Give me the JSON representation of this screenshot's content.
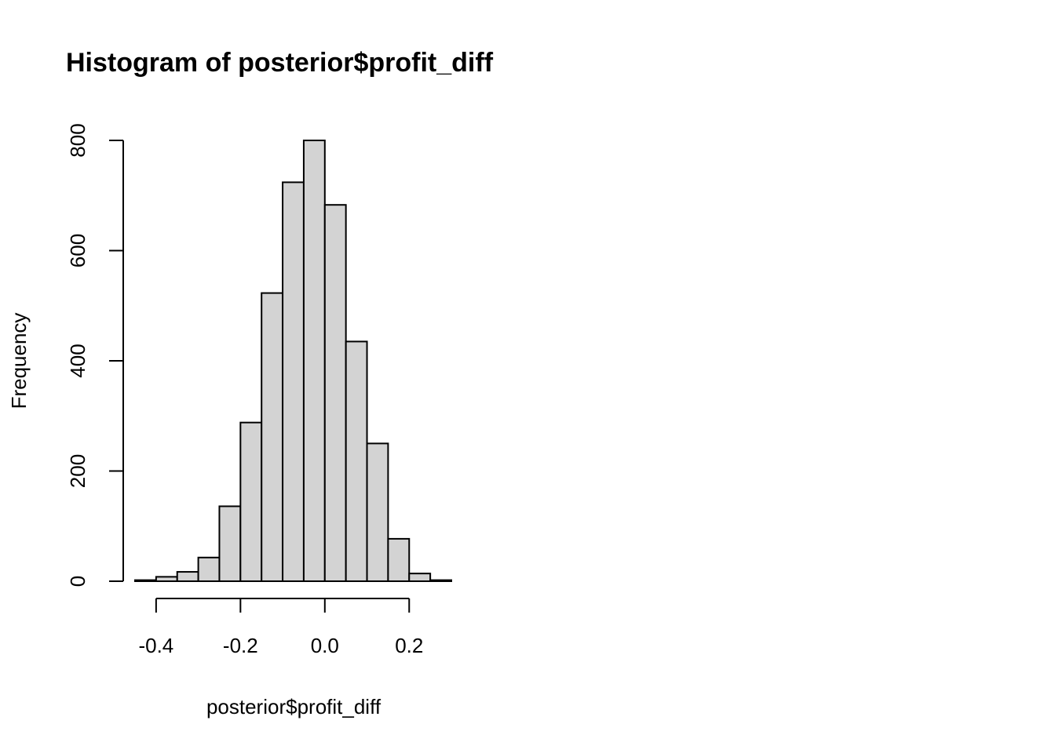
{
  "chart_data": {
    "type": "bar",
    "title": "Histogram of posterior$profit_diff",
    "xlabel": "posterior$profit_diff",
    "ylabel": "Frequency",
    "bin_edges": [
      -0.45,
      -0.4,
      -0.35,
      -0.3,
      -0.25,
      -0.2,
      -0.15,
      -0.1,
      -0.05,
      0.0,
      0.05,
      0.1,
      0.15,
      0.2,
      0.25,
      0.3
    ],
    "values": [
      2,
      8,
      17,
      43,
      136,
      288,
      523,
      724,
      800,
      683,
      435,
      250,
      77,
      14,
      2
    ],
    "xlim": [
      -0.45,
      0.3
    ],
    "ylim": [
      0,
      800
    ],
    "x_ticks": [
      -0.4,
      -0.2,
      0.0,
      0.2
    ],
    "x_tick_labels": [
      "-0.4",
      "-0.2",
      "0.0",
      "0.2"
    ],
    "y_ticks": [
      0,
      200,
      400,
      600,
      800
    ],
    "y_tick_labels": [
      "0",
      "200",
      "400",
      "600",
      "800"
    ],
    "bar_fill": "#d3d3d3",
    "bar_stroke": "#000000",
    "grid": false,
    "legend": "none"
  }
}
